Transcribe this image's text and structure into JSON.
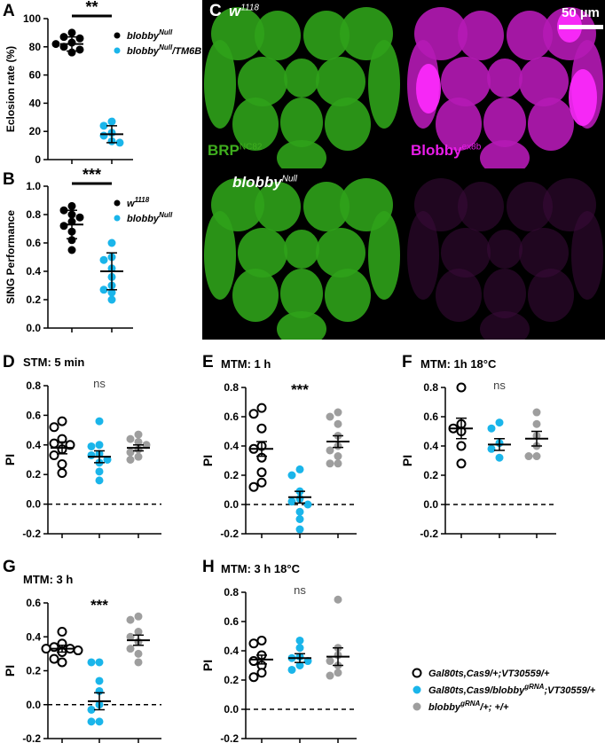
{
  "panel_letters": {
    "A": "A",
    "B": "B",
    "C": "C",
    "D": "D",
    "E": "E",
    "F": "F",
    "G": "G",
    "H": "H"
  },
  "micrograph": {
    "top_left_label": "w",
    "top_left_label_sup": "1118",
    "bottom_left_label": "blobby",
    "bottom_left_label_sup": "Null",
    "brp_label": "BRP",
    "brp_label_sup": "NC82",
    "blobby_label": "Blobby",
    "blobby_label_sup": "ex8b",
    "scale_bar_text": "50 µm",
    "green": "#3fae1e",
    "magenta": "#e81de8"
  },
  "legend_bottom": [
    {
      "text": "Gal80ts,Cas9/+;VT30559/+",
      "sup": "",
      "style": "open",
      "color": "#000000"
    },
    {
      "text": "Gal80ts,Cas9/blobby",
      "sup": "gRNA",
      "tail": ";VT30559/+",
      "style": "filled",
      "color": "#1ab5ea"
    },
    {
      "text": "blobby",
      "sup": "gRNA",
      "tail": "/+; +/+",
      "style": "filled",
      "color": "#9e9e9e"
    }
  ],
  "chart_data": [
    {
      "id": "A",
      "type": "scatter",
      "title": "",
      "ylabel": "Eclosion rate (%)",
      "ylim": [
        0,
        100
      ],
      "yticks": [
        0,
        20,
        40,
        60,
        80,
        100
      ],
      "significance": "**",
      "legend": [
        {
          "name": "blobby",
          "sup": "Null",
          "tail": "",
          "color": "#000000"
        },
        {
          "name": "blobby",
          "sup": "Null",
          "tail": "/TM6B",
          "color": "#1ab5ea"
        }
      ],
      "series": [
        {
          "color": "#000000",
          "style": "filled",
          "mean": 82,
          "sd": 5,
          "values": [
            90,
            87,
            86,
            83,
            82,
            80,
            78,
            76
          ]
        },
        {
          "color": "#1ab5ea",
          "style": "filled",
          "mean": 18,
          "sd": 6,
          "values": [
            27,
            24,
            19,
            17,
            13,
            12
          ]
        }
      ]
    },
    {
      "id": "B",
      "type": "scatter",
      "title": "",
      "ylabel": "SING Performance",
      "ylim": [
        0,
        1.0
      ],
      "yticks": [
        0.0,
        0.2,
        0.4,
        0.6,
        0.8,
        1.0
      ],
      "significance": "***",
      "legend": [
        {
          "name": "w",
          "sup": "1118",
          "tail": "",
          "color": "#000000"
        },
        {
          "name": "blobby",
          "sup": "Null",
          "tail": "",
          "color": "#1ab5ea"
        }
      ],
      "series": [
        {
          "color": "#000000",
          "style": "filled",
          "mean": 0.73,
          "sd": 0.1,
          "values": [
            0.86,
            0.83,
            0.8,
            0.78,
            0.75,
            0.72,
            0.68,
            0.62,
            0.55
          ]
        },
        {
          "color": "#1ab5ea",
          "style": "filled",
          "mean": 0.4,
          "sd": 0.13,
          "values": [
            0.6,
            0.5,
            0.48,
            0.42,
            0.36,
            0.3,
            0.27,
            0.25,
            0.2
          ]
        }
      ]
    },
    {
      "id": "D",
      "type": "scatter",
      "title": "STM: 5 min",
      "ylabel": "PI",
      "ylim": [
        -0.2,
        0.8
      ],
      "yticks": [
        -0.2,
        0.0,
        0.2,
        0.4,
        0.6,
        0.8
      ],
      "significance": "ns",
      "series": [
        {
          "color": "#000000",
          "style": "open",
          "mean": 0.38,
          "sem": 0.04,
          "values": [
            0.56,
            0.52,
            0.44,
            0.41,
            0.4,
            0.37,
            0.33,
            0.27,
            0.21
          ]
        },
        {
          "color": "#1ab5ea",
          "style": "filled",
          "mean": 0.32,
          "sem": 0.04,
          "values": [
            0.56,
            0.4,
            0.39,
            0.34,
            0.33,
            0.3,
            0.28,
            0.22,
            0.16
          ]
        },
        {
          "color": "#9e9e9e",
          "style": "filled",
          "mean": 0.38,
          "sem": 0.02,
          "values": [
            0.47,
            0.44,
            0.42,
            0.4,
            0.37,
            0.35,
            0.32,
            0.3
          ]
        }
      ]
    },
    {
      "id": "E",
      "type": "scatter",
      "title": "MTM: 1 h",
      "ylabel": "PI",
      "ylim": [
        -0.2,
        0.8
      ],
      "yticks": [
        -0.2,
        0.0,
        0.2,
        0.4,
        0.6,
        0.8
      ],
      "significance": "***",
      "series": [
        {
          "color": "#000000",
          "style": "open",
          "mean": 0.38,
          "sem": 0.05,
          "values": [
            0.66,
            0.62,
            0.52,
            0.4,
            0.38,
            0.32,
            0.22,
            0.15,
            0.12
          ]
        },
        {
          "color": "#1ab5ea",
          "style": "filled",
          "mean": 0.05,
          "sem": 0.04,
          "values": [
            0.24,
            0.2,
            0.09,
            0.04,
            0.02,
            0.0,
            -0.05,
            -0.1,
            -0.17
          ]
        },
        {
          "color": "#9e9e9e",
          "style": "filled",
          "mean": 0.43,
          "sem": 0.04,
          "values": [
            0.63,
            0.6,
            0.55,
            0.47,
            0.4,
            0.37,
            0.33,
            0.28,
            0.28
          ]
        }
      ]
    },
    {
      "id": "F",
      "type": "scatter",
      "title": "MTM: 1h 18°C",
      "ylabel": "PI",
      "ylim": [
        -0.2,
        0.8
      ],
      "yticks": [
        -0.2,
        0.0,
        0.2,
        0.4,
        0.6,
        0.8
      ],
      "significance": "ns",
      "series": [
        {
          "color": "#000000",
          "style": "open",
          "mean": 0.52,
          "sem": 0.07,
          "values": [
            0.8,
            0.55,
            0.52,
            0.5,
            0.4,
            0.28
          ]
        },
        {
          "color": "#1ab5ea",
          "style": "filled",
          "mean": 0.41,
          "sem": 0.04,
          "values": [
            0.56,
            0.52,
            0.42,
            0.38,
            0.32
          ]
        },
        {
          "color": "#9e9e9e",
          "style": "filled",
          "mean": 0.45,
          "sem": 0.05,
          "values": [
            0.63,
            0.55,
            0.47,
            0.4,
            0.33,
            0.33
          ]
        }
      ]
    },
    {
      "id": "G",
      "type": "scatter",
      "title": "MTM: 3 h",
      "ylabel": "PI",
      "ylim": [
        -0.2,
        0.6
      ],
      "yticks": [
        -0.2,
        0.0,
        0.2,
        0.4,
        0.6
      ],
      "significance": "***",
      "series": [
        {
          "color": "#000000",
          "style": "open",
          "mean": 0.33,
          "sem": 0.02,
          "values": [
            0.43,
            0.36,
            0.34,
            0.33,
            0.33,
            0.32,
            0.31,
            0.27,
            0.25
          ]
        },
        {
          "color": "#1ab5ea",
          "style": "filled",
          "mean": 0.02,
          "sem": 0.05,
          "values": [
            0.25,
            0.25,
            0.14,
            0.08,
            0.0,
            -0.03,
            -0.1,
            -0.1
          ]
        },
        {
          "color": "#9e9e9e",
          "style": "filled",
          "mean": 0.38,
          "sem": 0.03,
          "values": [
            0.52,
            0.5,
            0.43,
            0.4,
            0.37,
            0.33,
            0.3,
            0.25
          ]
        }
      ]
    },
    {
      "id": "H",
      "type": "scatter",
      "title": "MTM: 3 h 18°C",
      "ylabel": "PI",
      "ylim": [
        -0.2,
        0.8
      ],
      "yticks": [
        -0.2,
        0.0,
        0.2,
        0.4,
        0.6,
        0.8
      ],
      "significance": "ns",
      "series": [
        {
          "color": "#000000",
          "style": "open",
          "mean": 0.34,
          "sem": 0.03,
          "values": [
            0.47,
            0.45,
            0.37,
            0.33,
            0.3,
            0.25,
            0.22
          ]
        },
        {
          "color": "#1ab5ea",
          "style": "filled",
          "mean": 0.35,
          "sem": 0.03,
          "values": [
            0.47,
            0.42,
            0.36,
            0.35,
            0.33,
            0.3,
            0.27
          ]
        },
        {
          "color": "#9e9e9e",
          "style": "filled",
          "mean": 0.36,
          "sem": 0.06,
          "values": [
            0.75,
            0.42,
            0.37,
            0.33,
            0.3,
            0.25,
            0.23
          ]
        }
      ]
    }
  ]
}
